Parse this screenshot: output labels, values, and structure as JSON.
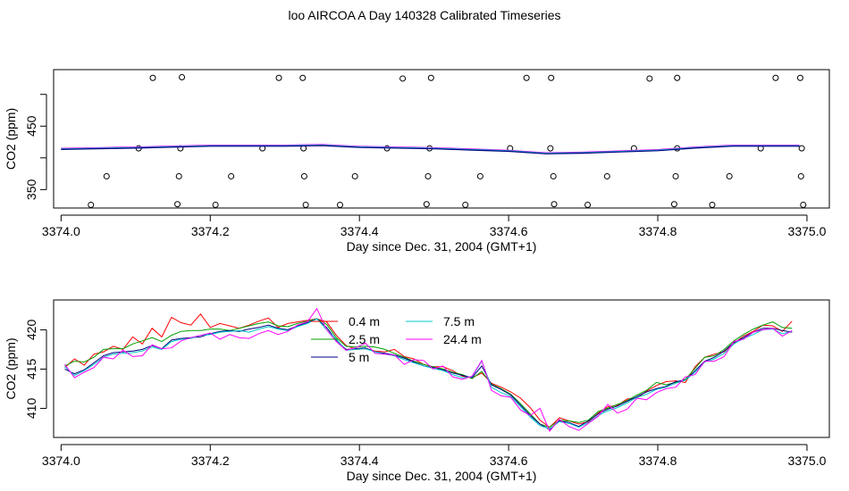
{
  "title": "loo AIRCOA A  Day 140328  Calibrated Timeseries",
  "chart_data": [
    {
      "type": "scatter",
      "xlabel": "Day since Dec. 31, 2004 (GMT+1)",
      "ylabel": "CO2 (ppm)",
      "xlim": [
        3373.99,
        3375.03
      ],
      "ylim": [
        321,
        539
      ],
      "x_ticks": [
        3374.0,
        3374.2,
        3374.4,
        3374.6,
        3374.8,
        3375.0
      ],
      "x_tick_labels": [
        "3374.0",
        "3374.2",
        "3374.4",
        "3374.6",
        "3374.8",
        "3375.0"
      ],
      "y_ticks": [
        350,
        400,
        450,
        500
      ],
      "y_tick_labels": [
        "350",
        "",
        "450",
        ""
      ],
      "points": [
        [
          3374.123,
          526
        ],
        [
          3374.162,
          527
        ],
        [
          3374.292,
          526
        ],
        [
          3374.324,
          526
        ],
        [
          3374.458,
          525
        ],
        [
          3374.496,
          526
        ],
        [
          3374.624,
          526
        ],
        [
          3374.657,
          526
        ],
        [
          3374.789,
          525
        ],
        [
          3374.826,
          526
        ],
        [
          3374.958,
          526
        ],
        [
          3374.991,
          526
        ],
        [
          3374.104,
          415
        ],
        [
          3374.16,
          415
        ],
        [
          3374.27,
          415
        ],
        [
          3374.325,
          415
        ],
        [
          3374.437,
          415
        ],
        [
          3374.494,
          415
        ],
        [
          3374.602,
          415
        ],
        [
          3374.656,
          415
        ],
        [
          3374.768,
          415
        ],
        [
          3374.826,
          415
        ],
        [
          3374.938,
          415
        ],
        [
          3374.993,
          415
        ],
        [
          3374.061,
          371
        ],
        [
          3374.158,
          371
        ],
        [
          3374.228,
          371
        ],
        [
          3374.326,
          371
        ],
        [
          3374.394,
          371
        ],
        [
          3374.492,
          371
        ],
        [
          3374.562,
          371
        ],
        [
          3374.66,
          371
        ],
        [
          3374.732,
          371
        ],
        [
          3374.824,
          371
        ],
        [
          3374.896,
          371
        ],
        [
          3374.992,
          371
        ],
        [
          3374.04,
          326
        ],
        [
          3374.156,
          327
        ],
        [
          3374.207,
          326
        ],
        [
          3374.328,
          326
        ],
        [
          3374.374,
          326
        ],
        [
          3374.49,
          327
        ],
        [
          3374.542,
          326
        ],
        [
          3374.661,
          327
        ],
        [
          3374.706,
          326
        ],
        [
          3374.822,
          327
        ],
        [
          3374.873,
          326
        ],
        [
          3374.995,
          326
        ]
      ],
      "line": {
        "x": [
          3374.0,
          3374.1,
          3374.2,
          3374.3,
          3374.35,
          3374.4,
          3374.5,
          3374.55,
          3374.6,
          3374.65,
          3374.7,
          3374.75,
          3374.8,
          3374.85,
          3374.9,
          3374.95,
          3374.99
        ],
        "y": [
          415,
          417,
          420,
          420,
          421,
          418,
          416,
          414,
          412,
          408,
          409,
          411,
          413,
          417,
          420,
          420,
          420
        ]
      }
    },
    {
      "type": "line",
      "xlabel": "Day since Dec. 31, 2004 (GMT+1)",
      "ylabel": "CO2 (ppm)",
      "xlim": [
        3373.99,
        3375.03
      ],
      "ylim": [
        406.3,
        423.8
      ],
      "x_ticks": [
        3374.0,
        3374.2,
        3374.4,
        3374.6,
        3374.8,
        3375.0
      ],
      "x_tick_labels": [
        "3374.0",
        "3374.2",
        "3374.4",
        "3374.6",
        "3374.8",
        "3375.0"
      ],
      "y_ticks": [
        410,
        415,
        420
      ],
      "y_tick_labels": [
        "410",
        "415",
        "420"
      ],
      "x": [
        3374.005,
        3374.018,
        3374.031,
        3374.044,
        3374.057,
        3374.07,
        3374.083,
        3374.096,
        3374.109,
        3374.122,
        3374.135,
        3374.148,
        3374.161,
        3374.174,
        3374.187,
        3374.2,
        3374.213,
        3374.226,
        3374.239,
        3374.252,
        3374.265,
        3374.278,
        3374.291,
        3374.304,
        3374.317,
        3374.33,
        3374.343,
        3374.356,
        3374.369,
        3374.382,
        3374.395,
        3374.408,
        3374.421,
        3374.434,
        3374.447,
        3374.46,
        3374.473,
        3374.486,
        3374.499,
        3374.512,
        3374.525,
        3374.538,
        3374.551,
        3374.564,
        3374.577,
        3374.59,
        3374.603,
        3374.616,
        3374.629,
        3374.642,
        3374.655,
        3374.668,
        3374.681,
        3374.694,
        3374.707,
        3374.72,
        3374.733,
        3374.746,
        3374.759,
        3374.772,
        3374.785,
        3374.798,
        3374.811,
        3374.824,
        3374.837,
        3374.85,
        3374.863,
        3374.876,
        3374.889,
        3374.902,
        3374.915,
        3374.928,
        3374.941,
        3374.954,
        3374.967,
        3374.98
      ],
      "series": [
        {
          "name": "0.4 m",
          "color": "#ff0000",
          "values": [
            415.2,
            416.3,
            415.5,
            416.9,
            417.2,
            417.9,
            417.5,
            419.1,
            418.2,
            420.2,
            419.1,
            421.6,
            420.9,
            420.6,
            422.0,
            420.3,
            420.8,
            420.5,
            420.2,
            420.6,
            421.1,
            421.5,
            420.3,
            420.8,
            421.0,
            421.2,
            421.4,
            421.0,
            419.3,
            418.0,
            417.5,
            417.6,
            417.3,
            417.2,
            417.5,
            416.6,
            416.3,
            415.6,
            415.3,
            415.3,
            414.8,
            414.1,
            413.9,
            414.5,
            413.2,
            412.7,
            412.1,
            411.3,
            410.1,
            408.5,
            407.6,
            408.8,
            408.4,
            408.0,
            408.3,
            409.4,
            410.2,
            410.4,
            411.2,
            411.3,
            412.2,
            412.9,
            413.4,
            413.5,
            413.3,
            415.3,
            416.5,
            416.9,
            417.2,
            418.3,
            419.2,
            419.8,
            420.6,
            420.5,
            419.8,
            421.1
          ]
        },
        {
          "name": "2.5 m",
          "color": "#00a000",
          "values": [
            415.4,
            416.0,
            415.9,
            416.5,
            417.5,
            417.6,
            417.6,
            418.2,
            418.6,
            419.0,
            418.5,
            419.3,
            419.8,
            419.9,
            419.9,
            420.1,
            420.1,
            419.9,
            420.2,
            420.5,
            420.8,
            421.0,
            420.5,
            420.4,
            420.8,
            421.1,
            421.4,
            420.7,
            419.0,
            417.9,
            417.8,
            417.9,
            417.8,
            417.5,
            417.0,
            416.5,
            416.0,
            415.6,
            415.3,
            415.0,
            414.6,
            414.3,
            413.8,
            414.7,
            413.1,
            412.5,
            411.8,
            410.6,
            409.3,
            408.0,
            407.6,
            408.5,
            408.4,
            408.2,
            408.5,
            409.6,
            410.0,
            410.5,
            411.0,
            411.7,
            412.3,
            413.3,
            413.0,
            413.3,
            413.7,
            415.1,
            416.5,
            416.7,
            417.5,
            418.6,
            419.4,
            420.1,
            420.6,
            421.0,
            420.3,
            420.2
          ]
        },
        {
          "name": "5 m",
          "color": "#000080",
          "values": [
            415.0,
            414.4,
            414.9,
            415.8,
            416.7,
            417.1,
            417.2,
            417.3,
            417.5,
            418.0,
            417.6,
            418.7,
            418.9,
            419.0,
            419.1,
            419.5,
            419.8,
            419.9,
            419.8,
            420.1,
            420.3,
            420.6,
            420.2,
            420.0,
            420.5,
            420.9,
            421.4,
            420.3,
            418.7,
            417.5,
            417.6,
            417.7,
            417.2,
            417.0,
            416.8,
            416.4,
            415.9,
            415.4,
            415.2,
            414.9,
            414.5,
            414.2,
            413.9,
            415.4,
            413.0,
            412.4,
            411.7,
            410.4,
            409.1,
            408.0,
            407.3,
            408.4,
            408.2,
            407.7,
            408.4,
            409.3,
            409.9,
            410.3,
            410.9,
            411.5,
            412.1,
            412.5,
            412.8,
            413.4,
            413.6,
            414.8,
            416.0,
            416.5,
            417.3,
            418.4,
            419.0,
            419.7,
            420.2,
            420.2,
            419.9,
            419.7
          ]
        },
        {
          "name": "7.5 m",
          "color": "#00c8c8",
          "values": [
            415.3,
            414.2,
            414.8,
            415.6,
            416.5,
            416.9,
            417.0,
            417.1,
            417.3,
            417.8,
            417.5,
            418.5,
            418.8,
            418.9,
            419.3,
            419.4,
            419.7,
            419.8,
            419.9,
            419.7,
            420.1,
            420.4,
            420.1,
            419.9,
            420.4,
            420.8,
            421.4,
            420.0,
            418.8,
            417.4,
            417.5,
            417.6,
            417.2,
            416.9,
            416.7,
            416.2,
            415.8,
            415.4,
            415.1,
            414.8,
            414.3,
            413.9,
            414.0,
            416.0,
            412.7,
            412.0,
            411.5,
            410.2,
            408.9,
            407.8,
            407.4,
            408.3,
            408.1,
            407.6,
            408.2,
            409.1,
            409.7,
            410.1,
            410.7,
            411.4,
            411.8,
            412.4,
            412.7,
            413.2,
            413.6,
            414.6,
            415.9,
            416.3,
            417.0,
            418.2,
            418.9,
            419.4,
            420.0,
            420.1,
            419.5,
            419.8
          ]
        },
        {
          "name": "24.4 m",
          "color": "#ff00ff",
          "values": [
            415.6,
            413.9,
            414.6,
            415.2,
            416.5,
            416.3,
            417.4,
            416.6,
            416.7,
            418.1,
            417.6,
            417.7,
            418.6,
            419.0,
            419.3,
            419.6,
            418.8,
            419.4,
            419.0,
            418.9,
            419.5,
            419.9,
            419.4,
            419.8,
            420.6,
            421.0,
            422.7,
            420.0,
            418.5,
            417.4,
            417.7,
            418.3,
            417.0,
            416.9,
            416.8,
            415.6,
            416.2,
            416.1,
            415.0,
            415.4,
            414.0,
            413.7,
            414.1,
            416.1,
            412.3,
            411.6,
            411.4,
            409.8,
            409.1,
            410.0,
            407.1,
            408.6,
            407.7,
            407.2,
            408.1,
            409.0,
            410.5,
            409.4,
            409.9,
            411.3,
            411.1,
            412.0,
            412.5,
            412.7,
            414.0,
            414.3,
            416.0,
            416.0,
            416.6,
            418.5,
            418.8,
            419.7,
            420.0,
            420.2,
            419.2,
            419.9
          ]
        }
      ],
      "legend": "top-center"
    }
  ]
}
